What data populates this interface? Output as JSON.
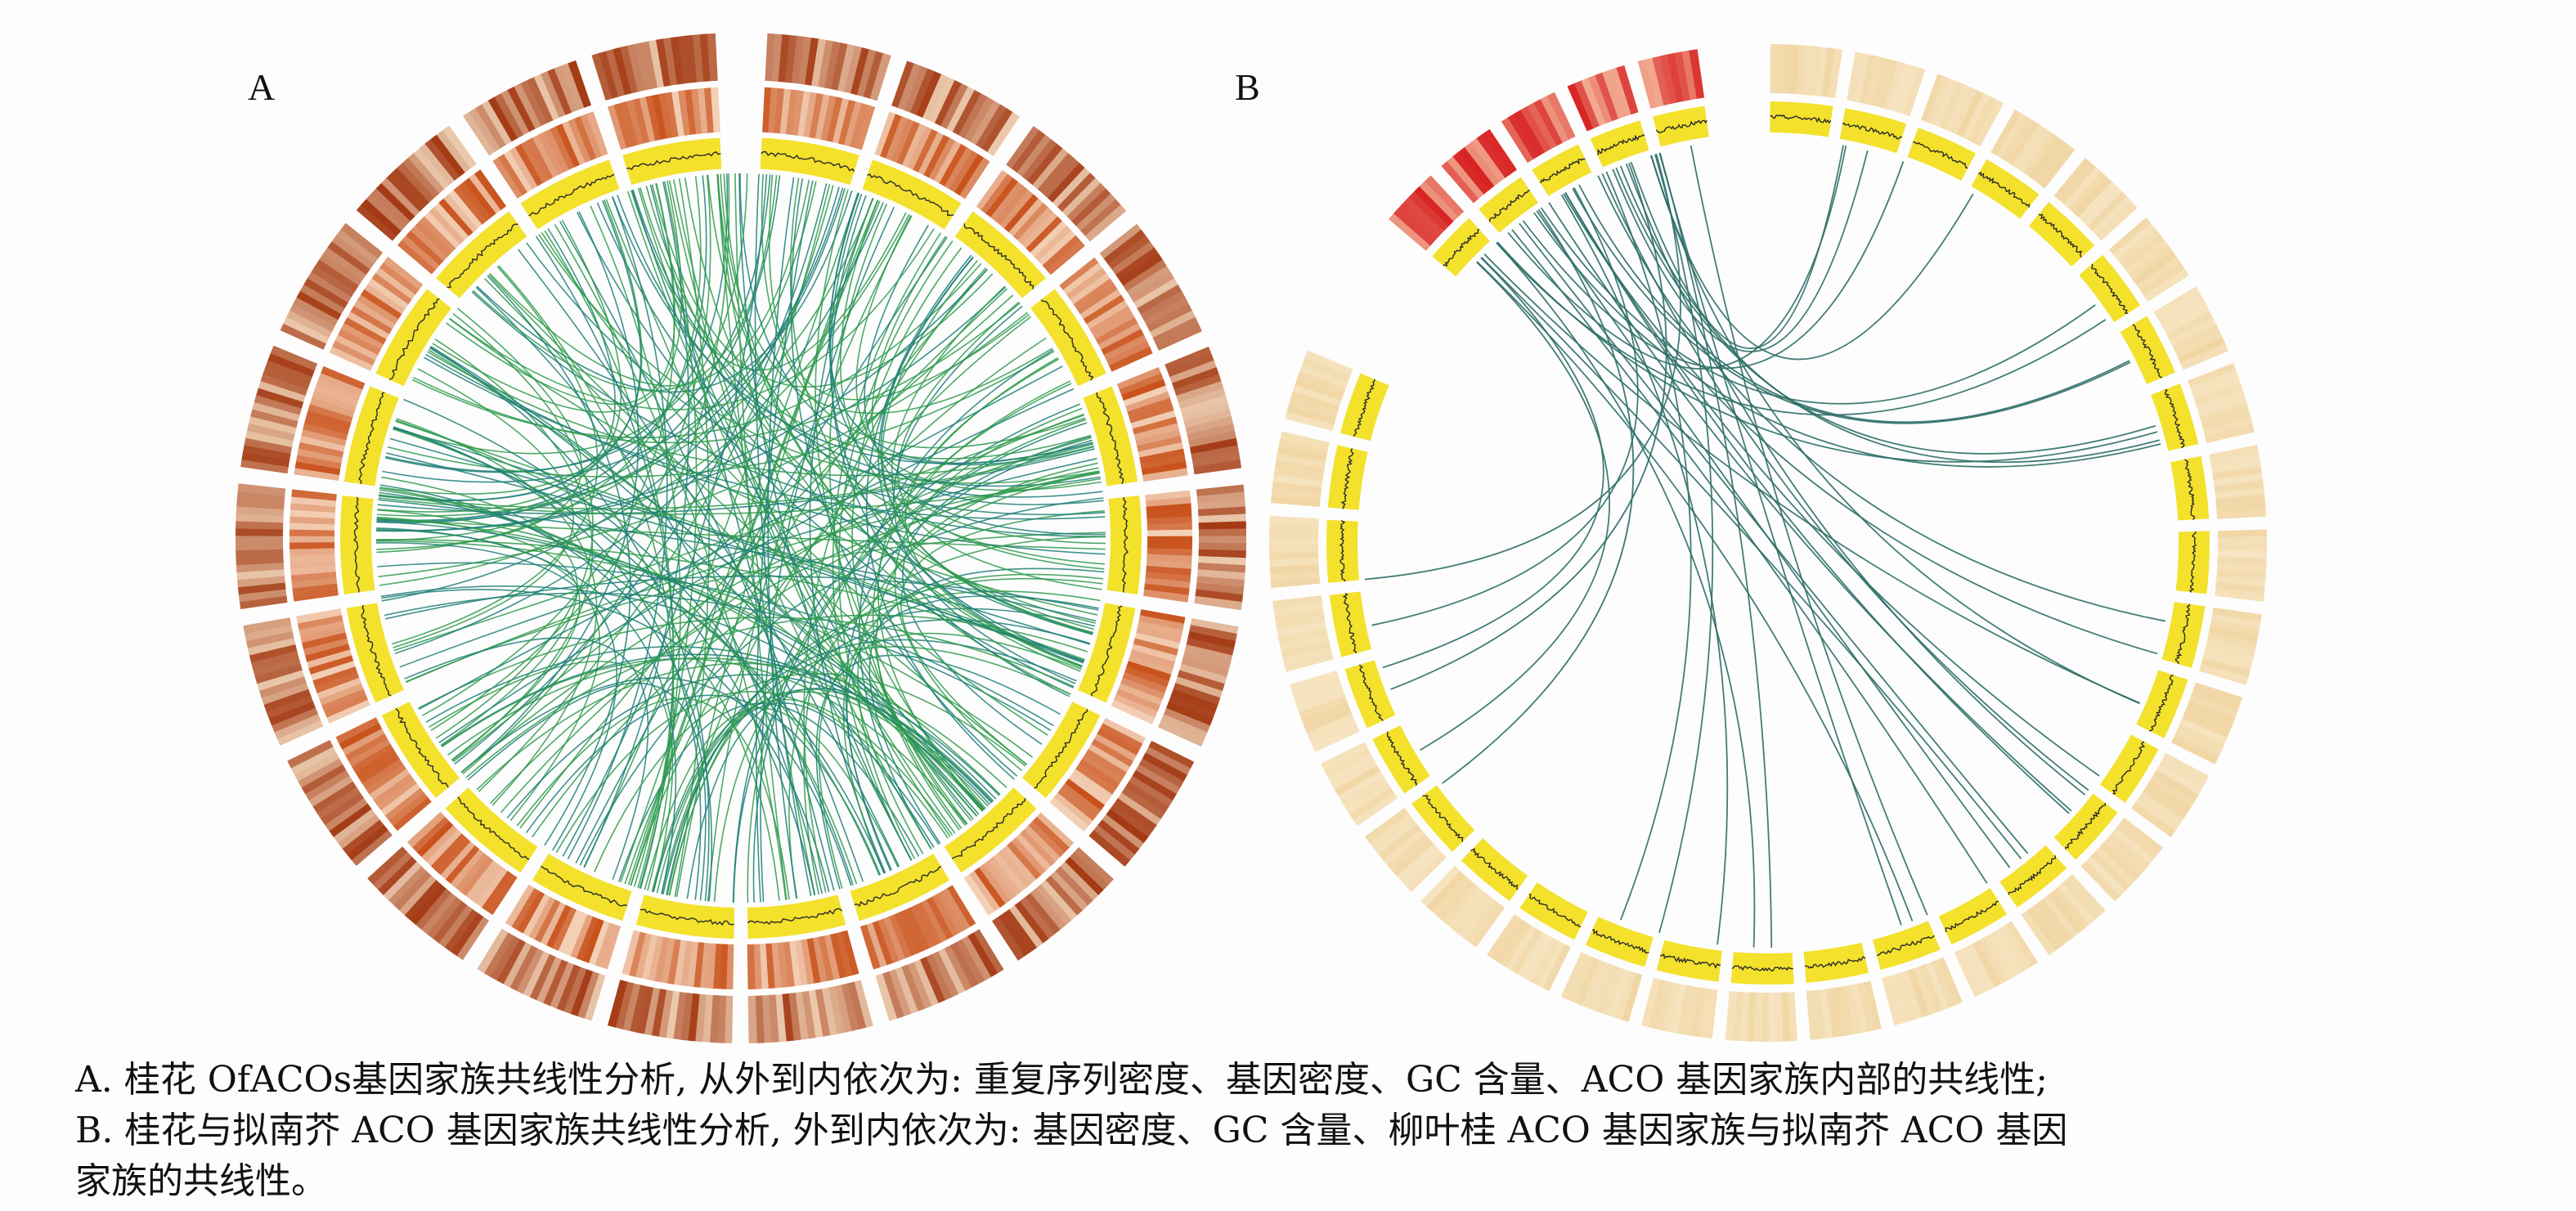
{
  "panels": [
    {
      "label": "A",
      "rings": [
        "重复序列密度",
        "基因密度",
        "GC 含量"
      ],
      "links": "ACO 基因家族内部的共线性",
      "colors": {
        "ring_outer": [
          "#a33a14",
          "#f8e3c8"
        ],
        "ring_mid": [
          "#c9521c",
          "#fbe8d3"
        ],
        "ring_inner": "#f3e12c",
        "track_line": "#2b2b2b",
        "link_primary": "#2f9a4c",
        "link_secondary": "#1e7f77"
      }
    },
    {
      "label": "B",
      "rings": [
        "基因密度",
        "GC 含量"
      ],
      "links": "柳叶桂 ACO 基因家族与拟南芥 ACO 基因家族的共线性",
      "colors": {
        "ring_outer_arabidopsis": [
          "#d82222",
          "#f6c2a4"
        ],
        "ring_outer_osmanthus": [
          "#f1d6a4",
          "#f7e7c7"
        ],
        "ring_inner": "#f3e12c",
        "track_line": "#2b2b2b",
        "link": "#2f6f68"
      }
    }
  ],
  "caption": {
    "line1": "A. 桂花 OfACOs基因家族共线性分析, 从外到内依次为: 重复序列密度、基因密度、GC 含量、ACO 基因家族内部的共线性;",
    "line2": "B. 桂花与拟南芥 ACO 基因家族共线性分析, 外到内依次为: 基因密度、GC 含量、柳叶桂 ACO 基因家族与拟南芥 ACO 基因",
    "line3": "家族的共线性。"
  }
}
